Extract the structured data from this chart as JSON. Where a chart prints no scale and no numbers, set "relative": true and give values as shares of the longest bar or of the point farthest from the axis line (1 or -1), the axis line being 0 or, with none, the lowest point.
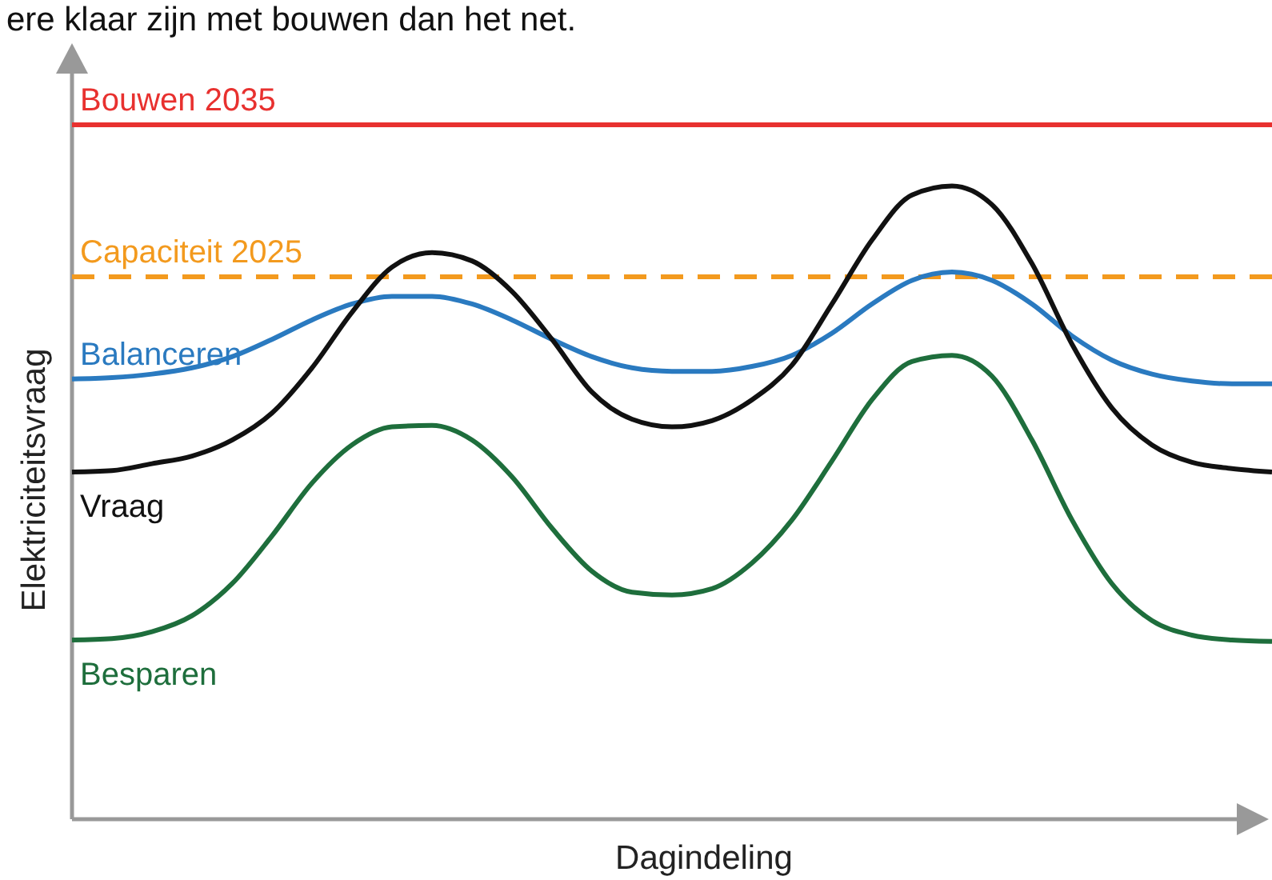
{
  "chart_data": {
    "type": "line",
    "title": "ere klaar zijn met bouwen dan het net.",
    "xlabel": "Dagindeling",
    "ylabel": "Elektriciteitsvraag",
    "relative": true,
    "legend": false,
    "marker": "none",
    "categories": [
      null,
      null,
      null,
      null,
      null,
      null,
      null,
      null,
      null,
      null,
      null,
      null,
      null,
      null,
      null,
      null,
      null,
      null,
      null,
      null,
      null,
      null,
      null,
      null,
      null,
      null,
      null,
      null,
      null,
      null,
      null
    ],
    "series": [
      {
        "name": "Bouwen 2035",
        "color": "#e8312f",
        "values": [
          1,
          1,
          1,
          1,
          1,
          1,
          1,
          1,
          1,
          1,
          1,
          1,
          1,
          1,
          1,
          1,
          1,
          1,
          1,
          1,
          1,
          1,
          1,
          1,
          1,
          1,
          1,
          1,
          1,
          1,
          1
        ]
      },
      {
        "name": "Capaciteit 2025",
        "color": "#f39a1e",
        "line_style": "dashed",
        "values": [
          0.781,
          0.781,
          0.781,
          0.781,
          0.781,
          0.781,
          0.781,
          0.781,
          0.781,
          0.781,
          0.781,
          0.781,
          0.781,
          0.781,
          0.781,
          0.781,
          0.781,
          0.781,
          0.781,
          0.781,
          0.781,
          0.781,
          0.781,
          0.781,
          0.781,
          0.781,
          0.781,
          0.781,
          0.781,
          0.781,
          0.781
        ]
      },
      {
        "name": "Balanceren",
        "color": "#2a7ac0",
        "values": [
          0.634,
          0.636,
          0.641,
          0.65,
          0.666,
          0.691,
          0.719,
          0.742,
          0.753,
          0.753,
          0.742,
          0.719,
          0.691,
          0.666,
          0.65,
          0.645,
          0.645,
          0.652,
          0.668,
          0.7,
          0.742,
          0.776,
          0.788,
          0.776,
          0.742,
          0.696,
          0.661,
          0.641,
          0.631,
          0.627,
          0.627
        ]
      },
      {
        "name": "Vraag",
        "color": "#111111",
        "values": [
          0.5,
          0.502,
          0.512,
          0.523,
          0.546,
          0.585,
          0.65,
          0.73,
          0.795,
          0.816,
          0.804,
          0.76,
          0.691,
          0.615,
          0.576,
          0.565,
          0.574,
          0.604,
          0.654,
          0.742,
          0.834,
          0.899,
          0.912,
          0.885,
          0.8,
          0.684,
          0.592,
          0.539,
          0.514,
          0.505,
          0.5
        ]
      },
      {
        "name": "Besparen",
        "color": "#1e6e3c",
        "values": [
          0.258,
          0.26,
          0.27,
          0.293,
          0.339,
          0.408,
          0.484,
          0.539,
          0.565,
          0.567,
          0.546,
          0.493,
          0.419,
          0.357,
          0.327,
          0.323,
          0.332,
          0.369,
          0.431,
          0.516,
          0.604,
          0.659,
          0.668,
          0.638,
          0.546,
          0.431,
          0.339,
          0.286,
          0.265,
          0.258,
          0.256
        ]
      }
    ]
  }
}
